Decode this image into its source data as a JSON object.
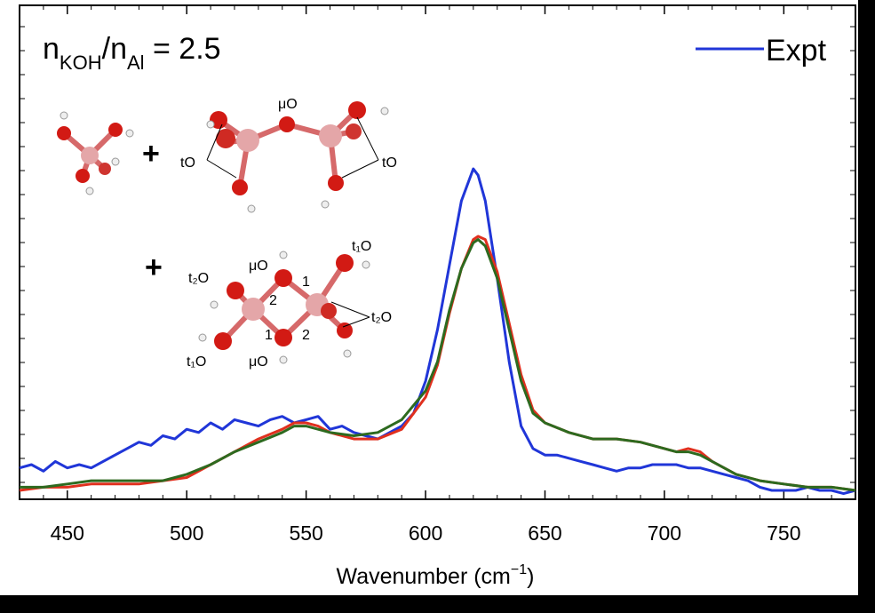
{
  "chart_data": {
    "type": "line",
    "title": {
      "n1": "n",
      "sub1": "KOH",
      "slash": "/",
      "n2": "n",
      "sub2": "Al",
      "rest": " = 2.5"
    },
    "xlabel": {
      "main": "Wavenumber (cm",
      "sup": "−1",
      "close": ")"
    },
    "ylabel": "",
    "xlim": [
      430,
      780
    ],
    "ylim": [
      0,
      1
    ],
    "xticks": [
      450,
      500,
      550,
      600,
      650,
      700,
      750
    ],
    "grid": false,
    "legend_position": "top-right",
    "series": [
      {
        "name": "Expt",
        "color": "#2036d8",
        "x": [
          430,
          435,
          440,
          445,
          450,
          455,
          460,
          465,
          470,
          475,
          480,
          485,
          490,
          495,
          500,
          505,
          510,
          515,
          520,
          525,
          530,
          535,
          540,
          545,
          550,
          555,
          560,
          565,
          570,
          575,
          580,
          585,
          590,
          595,
          600,
          605,
          610,
          615,
          620,
          622,
          625,
          630,
          635,
          640,
          645,
          650,
          655,
          660,
          665,
          670,
          675,
          680,
          685,
          690,
          695,
          700,
          705,
          710,
          715,
          720,
          725,
          730,
          735,
          740,
          745,
          750,
          755,
          760,
          765,
          770,
          775,
          780
        ],
        "y": [
          0.07,
          0.08,
          0.06,
          0.09,
          0.07,
          0.08,
          0.07,
          0.09,
          0.11,
          0.13,
          0.15,
          0.14,
          0.17,
          0.16,
          0.19,
          0.18,
          0.21,
          0.19,
          0.22,
          0.21,
          0.2,
          0.22,
          0.23,
          0.21,
          0.22,
          0.23,
          0.19,
          0.2,
          0.18,
          0.17,
          0.16,
          0.18,
          0.2,
          0.24,
          0.34,
          0.5,
          0.7,
          0.9,
          1.0,
          0.98,
          0.9,
          0.66,
          0.4,
          0.2,
          0.13,
          0.11,
          0.11,
          0.1,
          0.09,
          0.08,
          0.07,
          0.06,
          0.07,
          0.07,
          0.08,
          0.08,
          0.08,
          0.07,
          0.07,
          0.06,
          0.05,
          0.04,
          0.03,
          0.01,
          0.0,
          0.0,
          0.0,
          0.01,
          0.0,
          0.0,
          -0.01,
          0.0
        ]
      },
      {
        "name": "",
        "color": "#e0301e",
        "x": [
          430,
          440,
          450,
          460,
          470,
          480,
          490,
          500,
          510,
          520,
          530,
          540,
          545,
          550,
          555,
          560,
          570,
          580,
          590,
          600,
          605,
          610,
          615,
          620,
          622,
          625,
          630,
          635,
          640,
          645,
          650,
          660,
          670,
          680,
          690,
          700,
          705,
          710,
          715,
          720,
          730,
          740,
          750,
          760,
          770,
          780
        ],
        "y": [
          0.0,
          0.01,
          0.01,
          0.02,
          0.02,
          0.02,
          0.03,
          0.04,
          0.08,
          0.12,
          0.16,
          0.19,
          0.21,
          0.21,
          0.2,
          0.18,
          0.16,
          0.16,
          0.19,
          0.29,
          0.39,
          0.55,
          0.69,
          0.78,
          0.79,
          0.78,
          0.68,
          0.52,
          0.36,
          0.25,
          0.21,
          0.18,
          0.16,
          0.16,
          0.15,
          0.13,
          0.12,
          0.13,
          0.12,
          0.09,
          0.05,
          0.03,
          0.02,
          0.01,
          0.01,
          0.0
        ]
      },
      {
        "name": "",
        "color": "#2d6a1f",
        "x": [
          430,
          440,
          450,
          460,
          470,
          480,
          490,
          500,
          510,
          520,
          530,
          540,
          545,
          550,
          555,
          560,
          570,
          580,
          590,
          600,
          605,
          610,
          615,
          620,
          622,
          625,
          630,
          635,
          640,
          645,
          650,
          660,
          670,
          680,
          690,
          700,
          705,
          710,
          715,
          720,
          730,
          740,
          750,
          760,
          770,
          780
        ],
        "y": [
          0.01,
          0.01,
          0.02,
          0.03,
          0.03,
          0.03,
          0.03,
          0.05,
          0.08,
          0.12,
          0.15,
          0.18,
          0.2,
          0.2,
          0.19,
          0.18,
          0.17,
          0.18,
          0.22,
          0.31,
          0.4,
          0.56,
          0.69,
          0.77,
          0.78,
          0.76,
          0.66,
          0.5,
          0.34,
          0.24,
          0.21,
          0.18,
          0.16,
          0.16,
          0.15,
          0.13,
          0.12,
          0.12,
          0.11,
          0.09,
          0.05,
          0.03,
          0.02,
          0.01,
          0.01,
          0.0
        ]
      }
    ],
    "annotations": {
      "plus": "+",
      "mu_o": "μO",
      "t_o": "tO",
      "t1_o": "t₁O",
      "t2_o": "t₂O",
      "num1": "1",
      "num2": "2"
    }
  }
}
